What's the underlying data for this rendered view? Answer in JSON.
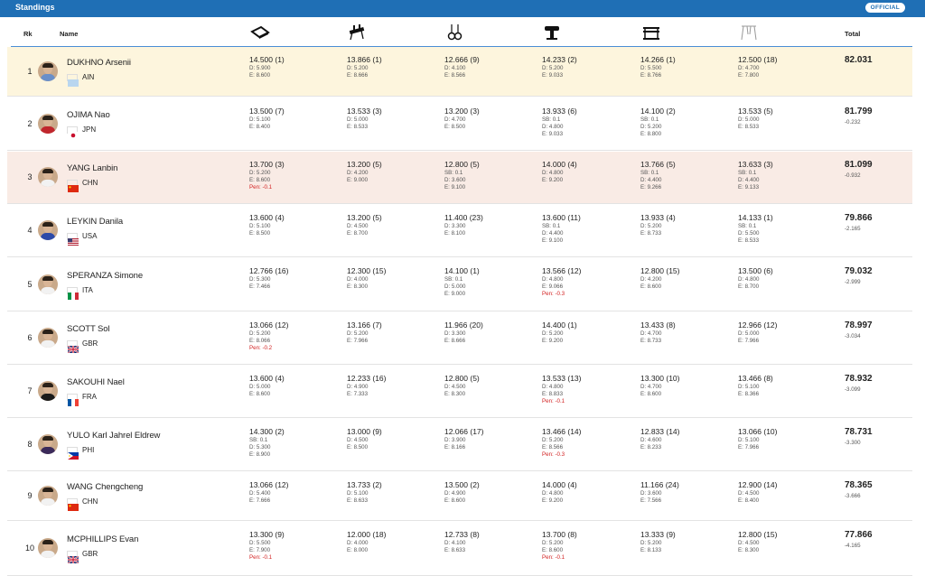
{
  "header": {
    "title": "Standings",
    "badge": "OFFICIAL"
  },
  "columns": {
    "rank": "Rk",
    "name": "Name",
    "total": "Total",
    "apparatus_icons": [
      "floor-icon",
      "pommel-horse-icon",
      "rings-icon",
      "vault-icon",
      "parallel-bars-icon",
      "horizontal-bar-icon"
    ]
  },
  "colors": {
    "topbar": "#1f6fb5",
    "highlight_gold": "#fdf5dd",
    "highlight_bronze": "#f9ebe5",
    "penalty": "#d21f1f"
  },
  "rows": [
    {
      "rank": "1",
      "name": "DUKHNO Arsenii",
      "noc": "AIN",
      "flag": "ain",
      "jersey": "#6a8fc9",
      "bg": "#fdf5dd",
      "scores": [
        [
          "14.500 (1)",
          "D: 5.900",
          "E: 8.600"
        ],
        [
          "13.866 (1)",
          "D: 5.200",
          "E: 8.666"
        ],
        [
          "12.666 (9)",
          "D: 4.100",
          "E: 8.566"
        ],
        [
          "14.233 (2)",
          "D: 5.200",
          "E: 9.033"
        ],
        [
          "14.266 (1)",
          "D: 5.500",
          "E: 8.766"
        ],
        [
          "12.500 (18)",
          "D: 4.700",
          "E: 7.800"
        ]
      ],
      "total": "82.031",
      "diff": ""
    },
    {
      "rank": "2",
      "name": "OJIMA Nao",
      "noc": "JPN",
      "flag": "jpn",
      "jersey": "#c0262d",
      "bg": "#ffffff",
      "scores": [
        [
          "13.500 (7)",
          "D: 5.100",
          "E: 8.400"
        ],
        [
          "13.533 (3)",
          "D: 5.000",
          "E: 8.533"
        ],
        [
          "13.200 (3)",
          "D: 4.700",
          "E: 8.500"
        ],
        [
          "13.933 (6)",
          "SB: 0.1",
          "D: 4.800",
          "E: 9.033"
        ],
        [
          "14.100 (2)",
          "SB: 0.1",
          "D: 5.200",
          "E: 8.800"
        ],
        [
          "13.533 (5)",
          "D: 5.000",
          "E: 8.533"
        ]
      ],
      "total": "81.799",
      "diff": "-0.232"
    },
    {
      "rank": "3",
      "name": "YANG Lanbin",
      "noc": "CHN",
      "flag": "chn",
      "jersey": "#f2f2f2",
      "bg": "#f9ebe5",
      "scores": [
        [
          "13.700 (3)",
          "D: 5.200",
          "E: 8.600",
          "Pen: -0.1"
        ],
        [
          "13.200 (5)",
          "D: 4.200",
          "E: 9.000"
        ],
        [
          "12.800 (5)",
          "SB: 0.1",
          "D: 3.600",
          "E: 9.100"
        ],
        [
          "14.000 (4)",
          "D: 4.800",
          "E: 9.200"
        ],
        [
          "13.766 (5)",
          "SB: 0.1",
          "D: 4.400",
          "E: 9.266"
        ],
        [
          "13.633 (3)",
          "SB: 0.1",
          "D: 4.400",
          "E: 9.133"
        ]
      ],
      "total": "81.099",
      "diff": "-0.932"
    },
    {
      "rank": "4",
      "name": "LEYKIN Danila",
      "noc": "USA",
      "flag": "usa",
      "jersey": "#2d4aa8",
      "bg": "#ffffff",
      "scores": [
        [
          "13.600 (4)",
          "D: 5.100",
          "E: 8.500"
        ],
        [
          "13.200 (5)",
          "D: 4.500",
          "E: 8.700"
        ],
        [
          "11.400 (23)",
          "D: 3.300",
          "E: 8.100"
        ],
        [
          "13.600 (11)",
          "SB: 0.1",
          "D: 4.400",
          "E: 9.100"
        ],
        [
          "13.933 (4)",
          "D: 5.200",
          "E: 8.733"
        ],
        [
          "14.133 (1)",
          "SB: 0.1",
          "D: 5.500",
          "E: 8.533"
        ]
      ],
      "total": "79.866",
      "diff": "-2.165"
    },
    {
      "rank": "5",
      "name": "SPERANZA Simone",
      "noc": "ITA",
      "flag": "ita",
      "jersey": "#f2f2f2",
      "bg": "#ffffff",
      "scores": [
        [
          "12.766 (16)",
          "D: 5.300",
          "E: 7.466"
        ],
        [
          "12.300 (15)",
          "D: 4.000",
          "E: 8.300"
        ],
        [
          "14.100 (1)",
          "SB: 0.1",
          "D: 5.000",
          "E: 9.000"
        ],
        [
          "13.566 (12)",
          "D: 4.800",
          "E: 9.066",
          "Pen: -0.3"
        ],
        [
          "12.800 (15)",
          "D: 4.200",
          "E: 8.600"
        ],
        [
          "13.500 (6)",
          "D: 4.800",
          "E: 8.700"
        ]
      ],
      "total": "79.032",
      "diff": "-2.999"
    },
    {
      "rank": "6",
      "name": "SCOTT Sol",
      "noc": "GBR",
      "flag": "gbr",
      "jersey": "#f2f2f2",
      "bg": "#ffffff",
      "scores": [
        [
          "13.066 (12)",
          "D: 5.200",
          "E: 8.066",
          "Pen: -0.2"
        ],
        [
          "13.166 (7)",
          "D: 5.200",
          "E: 7.966"
        ],
        [
          "11.966 (20)",
          "D: 3.300",
          "E: 8.666"
        ],
        [
          "14.400 (1)",
          "D: 5.200",
          "E: 9.200"
        ],
        [
          "13.433 (8)",
          "D: 4.700",
          "E: 8.733"
        ],
        [
          "12.966 (12)",
          "D: 5.000",
          "E: 7.966"
        ]
      ],
      "total": "78.997",
      "diff": "-3.034"
    },
    {
      "rank": "7",
      "name": "SAKOUHI Nael",
      "noc": "FRA",
      "flag": "fra",
      "jersey": "#1b1b1b",
      "bg": "#ffffff",
      "scores": [
        [
          "13.600 (4)",
          "D: 5.000",
          "E: 8.600"
        ],
        [
          "12.233 (16)",
          "D: 4.900",
          "E: 7.333"
        ],
        [
          "12.800 (5)",
          "D: 4.500",
          "E: 8.300"
        ],
        [
          "13.533 (13)",
          "D: 4.800",
          "E: 8.833",
          "Pen: -0.1"
        ],
        [
          "13.300 (10)",
          "D: 4.700",
          "E: 8.600"
        ],
        [
          "13.466 (8)",
          "D: 5.100",
          "E: 8.366"
        ]
      ],
      "total": "78.932",
      "diff": "-3.099"
    },
    {
      "rank": "8",
      "name": "YULO Karl Jahrel Eldrew",
      "noc": "PHI",
      "flag": "phi",
      "jersey": "#3b2a5a",
      "bg": "#ffffff",
      "scores": [
        [
          "14.300 (2)",
          "SB: 0.1",
          "D: 5.300",
          "E: 8.900"
        ],
        [
          "13.000 (9)",
          "D: 4.500",
          "E: 8.500"
        ],
        [
          "12.066 (17)",
          "D: 3.900",
          "E: 8.166"
        ],
        [
          "13.466 (14)",
          "D: 5.200",
          "E: 8.566",
          "Pen: -0.3"
        ],
        [
          "12.833 (14)",
          "D: 4.600",
          "E: 8.233"
        ],
        [
          "13.066 (10)",
          "D: 5.100",
          "E: 7.966"
        ]
      ],
      "total": "78.731",
      "diff": "-3.300"
    },
    {
      "rank": "9",
      "name": "WANG Chengcheng",
      "noc": "CHN",
      "flag": "chn",
      "jersey": "#f2f2f2",
      "bg": "#ffffff",
      "scores": [
        [
          "13.066 (12)",
          "D: 5.400",
          "E: 7.666"
        ],
        [
          "13.733 (2)",
          "D: 5.100",
          "E: 8.633"
        ],
        [
          "13.500 (2)",
          "D: 4.900",
          "E: 8.600"
        ],
        [
          "14.000 (4)",
          "D: 4.800",
          "E: 9.200"
        ],
        [
          "11.166 (24)",
          "D: 3.600",
          "E: 7.566"
        ],
        [
          "12.900 (14)",
          "D: 4.500",
          "E: 8.400"
        ]
      ],
      "total": "78.365",
      "diff": "-3.666"
    },
    {
      "rank": "10",
      "name": "MCPHILLIPS Evan",
      "noc": "GBR",
      "flag": "gbr",
      "jersey": "#f2f2f2",
      "bg": "#ffffff",
      "scores": [
        [
          "13.300 (9)",
          "D: 5.500",
          "E: 7.900",
          "Pen: -0.1"
        ],
        [
          "12.000 (18)",
          "D: 4.000",
          "E: 8.000"
        ],
        [
          "12.733 (8)",
          "D: 4.100",
          "E: 8.633"
        ],
        [
          "13.700 (8)",
          "D: 5.200",
          "E: 8.600",
          "Pen: -0.1"
        ],
        [
          "13.333 (9)",
          "D: 5.200",
          "E: 8.133"
        ],
        [
          "12.800 (15)",
          "D: 4.500",
          "E: 8.300"
        ]
      ],
      "total": "77.866",
      "diff": "-4.165"
    }
  ]
}
